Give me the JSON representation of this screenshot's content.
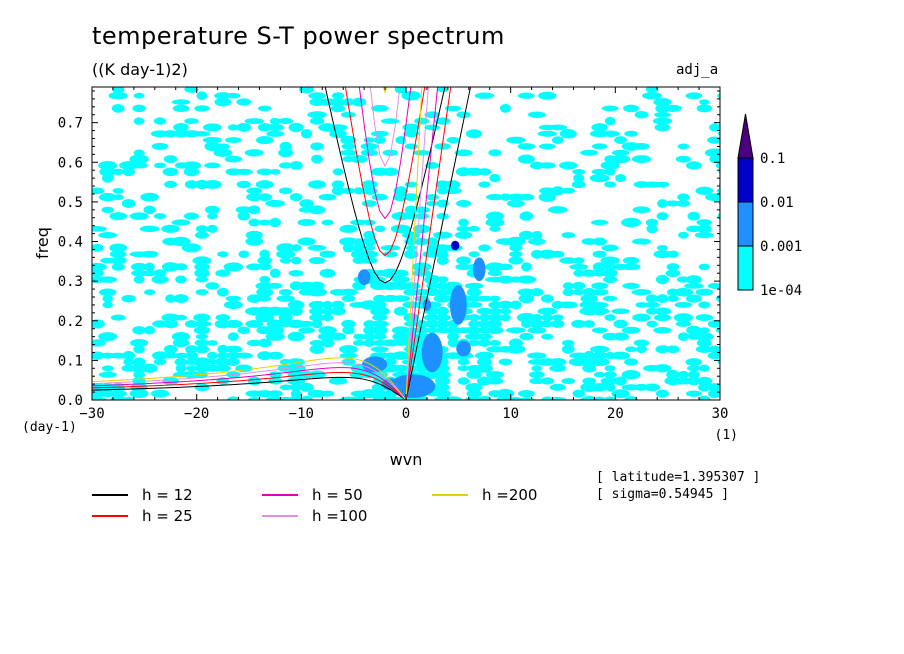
{
  "header": {
    "title": "temperature S-T power spectrum",
    "subtitle": "((K day-1)2)",
    "tag": "adj_a"
  },
  "info": {
    "latitude": "[ latitude=1.395307 ]",
    "sigma": "[ sigma=0.54945 ]"
  },
  "chart_data": {
    "type": "heatmap",
    "title": "temperature S-T power spectrum",
    "subtitle": "((K day-1)2)",
    "xlabel": "wvn",
    "x_unit": "(1)",
    "ylabel": "freq",
    "y_unit": "(day-1)",
    "xlim": [
      -30,
      30
    ],
    "ylim": [
      0,
      0.79
    ],
    "xticks": [
      -30,
      -20,
      -10,
      0,
      10,
      20,
      30
    ],
    "yticks": [
      0.0,
      0.1,
      0.2,
      0.3,
      0.4,
      0.5,
      0.6,
      0.7
    ],
    "colorbar": {
      "levels": [
        "1e-04",
        "0.001",
        "0.01",
        "0.1"
      ],
      "colors": [
        "#00ffff",
        "#1e90ff",
        "#0000cd",
        "#4b0082"
      ]
    },
    "dispersion_curves": [
      {
        "name": "h = 12",
        "h": 12,
        "color": "#000000"
      },
      {
        "name": "h = 25",
        "h": 25,
        "color": "#ff0000"
      },
      {
        "name": "h = 50",
        "h": 50,
        "color": "#e000c0"
      },
      {
        "name": "h =100",
        "h": 100,
        "color": "#e090e0"
      },
      {
        "name": "h =200",
        "h": 200,
        "color": "#e8d000"
      }
    ],
    "latitude": 1.395307,
    "sigma": 0.54945
  }
}
